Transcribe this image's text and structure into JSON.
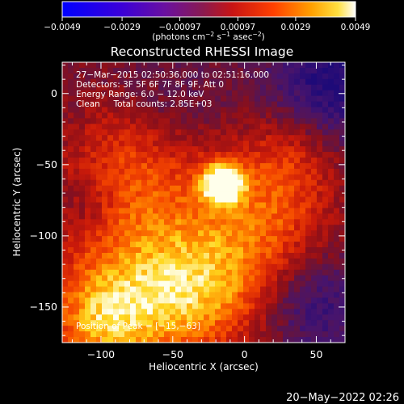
{
  "chart_data": {
    "type": "heatmap",
    "title": "Reconstructed RHESSI Image",
    "xlabel": "Heliocentric X (arcsec)",
    "ylabel": "Heliocentric Y (arcsec)",
    "xlim": [
      -127,
      70
    ],
    "ylim": [
      -175,
      22
    ],
    "x_ticks": [
      -100,
      -50,
      0,
      50
    ],
    "y_ticks": [
      0,
      -50,
      -100,
      -150
    ],
    "x_tick_labels": [
      "−100",
      "−50",
      "0",
      "50"
    ],
    "y_tick_labels": [
      "0",
      "−50",
      "−100",
      "−150"
    ],
    "colorbar": {
      "range": [
        -0.0049,
        0.0049
      ],
      "tick_labels": [
        "−0.0049",
        "−0.0029",
        "−0.00097",
        "0.00097",
        "0.0029",
        "0.0049"
      ],
      "tick_values": [
        -0.0049,
        -0.0029,
        -0.00097,
        0.00097,
        0.0029,
        0.0049
      ],
      "units_prefix": "(photons cm",
      "units_exp1": "−2",
      "units_mid": " s",
      "units_exp2": "−1",
      "units_mid2": " asec",
      "units_exp3": "−2",
      "units_suffix": ")"
    },
    "annotations": [
      "27−Mar−2015 02:50:36.000 to 02:51:16.000",
      "Detectors: 3F 5F 6F 7F 8F 9F, Att 0",
      "Energy Range: 6.0 − 12.0 keV",
      "Clean     Total counts: 2.85E+03"
    ],
    "peak_label": "Position of Peak = [−15,−63]",
    "peak": [
      -15,
      -63
    ],
    "timestamp": "20−May−2022 02:26",
    "source": {
      "x": -15,
      "y": -63,
      "peak_value": 0.0049
    },
    "colors": {
      "background": "#000000",
      "text": "#ffffff"
    }
  }
}
